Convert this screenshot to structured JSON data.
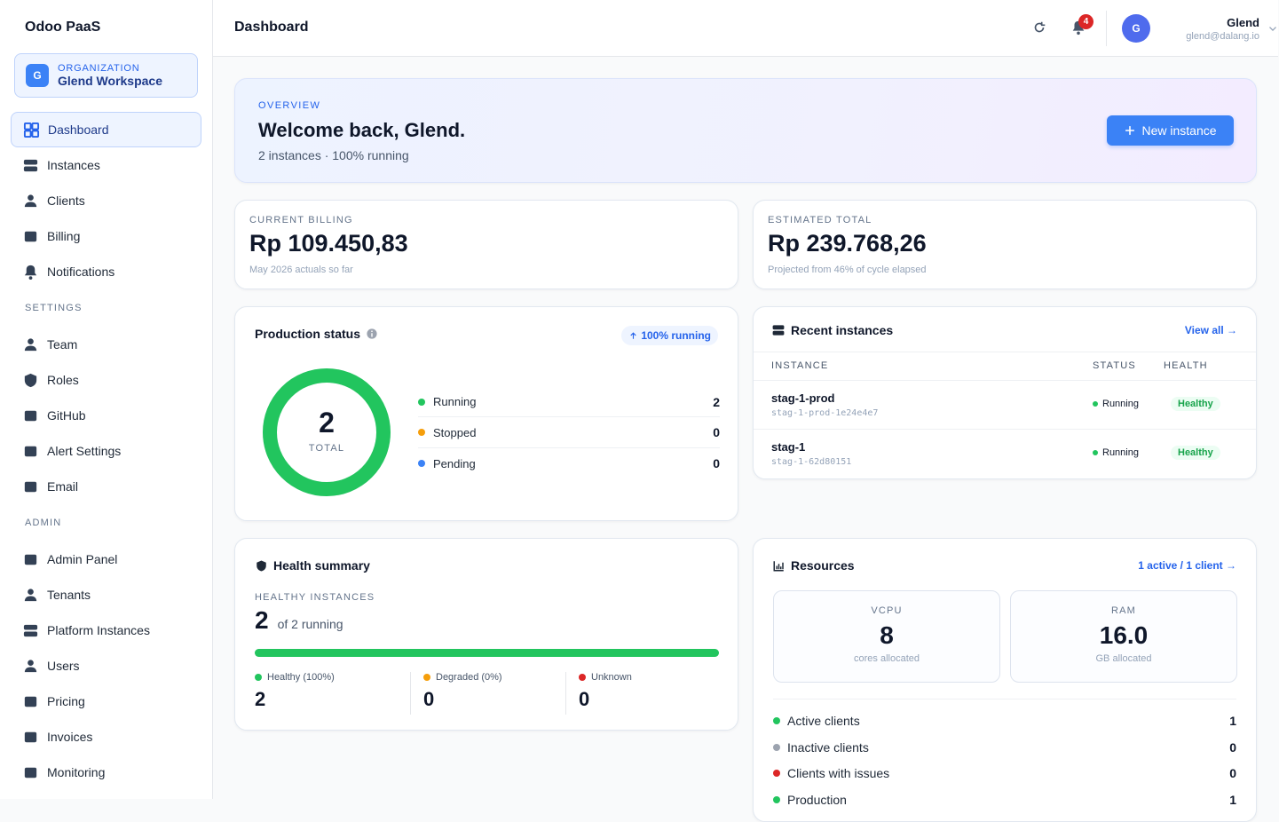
{
  "sidebar": {
    "brand": "Odoo PaaS",
    "org": {
      "avatar": "G",
      "label": "ORGANIZATION",
      "name": "Glend Workspace"
    },
    "main": [
      {
        "label": "Dashboard",
        "active": true
      },
      {
        "label": "Instances"
      },
      {
        "label": "Clients"
      },
      {
        "label": "Billing"
      },
      {
        "label": "Notifications"
      }
    ],
    "sections": [
      {
        "title": "SETTINGS",
        "items": [
          {
            "label": "Team"
          },
          {
            "label": "Roles"
          },
          {
            "label": "GitHub"
          },
          {
            "label": "Alert Settings"
          },
          {
            "label": "Email"
          }
        ]
      },
      {
        "title": "ADMIN",
        "items": [
          {
            "label": "Admin Panel"
          },
          {
            "label": "Tenants"
          },
          {
            "label": "Platform Instances"
          },
          {
            "label": "Users"
          },
          {
            "label": "Pricing"
          },
          {
            "label": "Invoices"
          },
          {
            "label": "Monitoring"
          }
        ]
      }
    ]
  },
  "header": {
    "title": "Dashboard",
    "notifications": 4,
    "user": {
      "avatar": "G",
      "name": "Glend",
      "email": "glend@dalang.io"
    }
  },
  "overview": {
    "eyebrow": "OVERVIEW",
    "title": "Welcome back, Glend.",
    "subtitle": "2 instances · 100% running",
    "button": "New instance"
  },
  "billing": [
    {
      "label": "CURRENT BILLING",
      "amount": "Rp 109.450,83",
      "note": "May 2026 actuals so far"
    },
    {
      "label": "ESTIMATED TOTAL",
      "amount": "Rp 239.768,26",
      "note": "Projected from 46% of cycle elapsed"
    }
  ],
  "production": {
    "title": "Production status",
    "badge": "100% running",
    "total": 2,
    "total_label": "TOTAL",
    "legend": [
      {
        "label": "Running",
        "value": 2,
        "color": "#22c55e"
      },
      {
        "label": "Stopped",
        "value": 0,
        "color": "#f59e0b"
      },
      {
        "label": "Pending",
        "value": 0,
        "color": "#3b82f6"
      }
    ]
  },
  "recent": {
    "title": "Recent instances",
    "link": "View all →",
    "columns": [
      "INSTANCE",
      "STATUS",
      "HEALTH"
    ],
    "rows": [
      {
        "name": "stag-1-prod",
        "id": "stag-1-prod-1e24e4e7",
        "status": "Running",
        "health": "Healthy"
      },
      {
        "name": "stag-1",
        "id": "stag-1-62d80151",
        "status": "Running",
        "health": "Healthy"
      }
    ]
  },
  "health": {
    "title": "Health summary",
    "label": "HEALTHY INSTANCES",
    "value": 2,
    "of": "of 2 running",
    "stats": [
      {
        "label": "Healthy (100%)",
        "value": 2,
        "color": "#22c55e"
      },
      {
        "label": "Degraded (0%)",
        "value": 0,
        "color": "#f59e0b"
      },
      {
        "label": "Unknown",
        "value": 0,
        "color": "#dc2626"
      }
    ]
  },
  "resources": {
    "title": "Resources",
    "link": "1 active / 1 client →",
    "tiles": [
      {
        "label": "VCPU",
        "value": 8,
        "note": "cores allocated"
      },
      {
        "label": "RAM",
        "value": "16.0",
        "note": "GB allocated"
      }
    ],
    "list": [
      {
        "label": "Active clients",
        "value": 1,
        "color": "#22c55e"
      },
      {
        "label": "Inactive clients",
        "value": 0,
        "color": "#9ca3af"
      },
      {
        "label": "Clients with issues",
        "value": 0,
        "color": "#dc2626"
      },
      {
        "label": "Production",
        "value": 1,
        "color": "#22c55e"
      }
    ]
  }
}
